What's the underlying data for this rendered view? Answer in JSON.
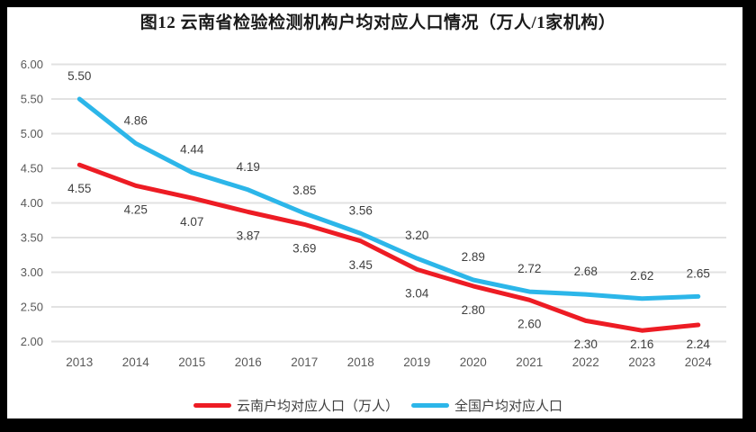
{
  "chart_data": {
    "type": "line",
    "title": "图12  云南省检验检测机构户均对应人口情况（万人/1家机构）",
    "categories": [
      "2013",
      "2014",
      "2015",
      "2016",
      "2017",
      "2018",
      "2019",
      "2020",
      "2021",
      "2022",
      "2023",
      "2024"
    ],
    "series": [
      {
        "name": "云南户均对应人口（万人）",
        "color": "#ed1c24",
        "values": [
          4.55,
          4.25,
          4.07,
          3.87,
          3.69,
          3.45,
          3.04,
          2.8,
          2.6,
          2.3,
          2.16,
          2.24
        ],
        "label_position": "below"
      },
      {
        "name": "全国户均对应人口",
        "color": "#2cb6e9",
        "values": [
          5.5,
          4.86,
          4.44,
          4.19,
          3.85,
          3.56,
          3.2,
          2.89,
          2.72,
          2.68,
          2.62,
          2.65
        ],
        "label_position": "above"
      }
    ],
    "xlabel": "",
    "ylabel": "",
    "ylim": [
      2.0,
      6.0
    ],
    "ytick_step": 0.5,
    "ytick_labels": [
      "6.00",
      "5.50",
      "5.00",
      "4.50",
      "4.00",
      "3.50",
      "3.00",
      "2.50",
      "2.00"
    ],
    "grid": true,
    "legend_position": "bottom",
    "data_labels_shown": true
  },
  "colors": {
    "background": "#ffffff",
    "frame_border": "#000000",
    "gridline": "#e2e2e2",
    "axis_label": "#595959",
    "data_label": "#3f3f3f",
    "legend_text": "#404040",
    "title_text": "#1a1a1a"
  }
}
